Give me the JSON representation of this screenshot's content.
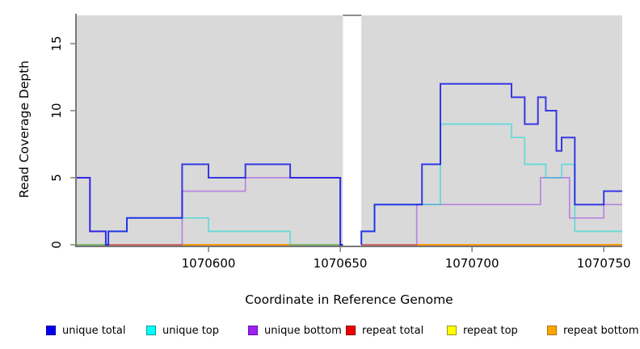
{
  "axes": {
    "x_label": "Coordinate in Reference Genome",
    "y_label": "Read Coverage Depth",
    "x_ticks": [
      1070600,
      1070650,
      1070700,
      1070750
    ],
    "y_ticks": [
      0,
      5,
      10,
      15
    ]
  },
  "legend": [
    {
      "label": "unique total",
      "fill": "#0000EE",
      "border": "#0000A0"
    },
    {
      "label": "unique top",
      "fill": "#00FFFF",
      "border": "#009999"
    },
    {
      "label": "unique bottom",
      "fill": "#A020F0",
      "border": "#6A0DAD"
    },
    {
      "label": "repeat total",
      "fill": "#EE0000",
      "border": "#8B0000"
    },
    {
      "label": "repeat top",
      "fill": "#FFFF00",
      "border": "#9A9A00"
    },
    {
      "label": "repeat bottom",
      "fill": "#FFA500",
      "border": "#B07000"
    }
  ],
  "chart_data": {
    "type": "line",
    "step": true,
    "title": "",
    "xlabel": "Coordinate in Reference Genome",
    "ylabel": "Read Coverage Depth",
    "x_range": [
      1070550,
      1070757
    ],
    "y_range": [
      0,
      17
    ],
    "grid": false,
    "legend_position": "bottom",
    "plot_bg": "#D9D9D9",
    "gap_x": [
      1070651,
      1070658
    ],
    "series": [
      {
        "name": "repeat total",
        "color": "#DC0000",
        "opacity": 0.85,
        "width": 1.6,
        "segments": [
          [
            [
              1070550,
              0
            ],
            [
              1070651,
              0
            ]
          ],
          [
            [
              1070658,
              0
            ],
            [
              1070757,
              0
            ]
          ]
        ]
      },
      {
        "name": "repeat top",
        "color": "#F5E600",
        "opacity": 0.85,
        "width": 1.6,
        "segments": [
          [
            [
              1070550,
              0
            ],
            [
              1070651,
              0
            ]
          ],
          [
            [
              1070658,
              0
            ],
            [
              1070757,
              0
            ]
          ]
        ]
      },
      {
        "name": "repeat bottom",
        "color": "#FF9400",
        "opacity": 0.95,
        "width": 1.8,
        "segments": [
          [
            [
              1070550,
              0
            ],
            [
              1070651,
              0
            ]
          ],
          [
            [
              1070658,
              0
            ],
            [
              1070757,
              0
            ]
          ]
        ]
      },
      {
        "name": "unique bottom",
        "color": "#9B30E8",
        "opacity": 0.5,
        "width": 1.7,
        "segments": [
          [
            [
              1070550,
              5
            ],
            [
              1070555,
              1
            ],
            [
              1070561,
              0
            ],
            [
              1070590,
              4
            ],
            [
              1070614,
              5
            ],
            [
              1070650,
              0
            ],
            [
              1070651,
              0
            ]
          ],
          [
            [
              1070658,
              0
            ],
            [
              1070679,
              3
            ],
            [
              1070726,
              5
            ],
            [
              1070737,
              2
            ],
            [
              1070750,
              3
            ],
            [
              1070757,
              3
            ]
          ]
        ]
      },
      {
        "name": "unique top",
        "color": "#00D8D8",
        "opacity": 0.55,
        "width": 1.7,
        "segments": [
          [
            [
              1070550,
              0
            ],
            [
              1070562,
              1
            ],
            [
              1070569,
              2
            ],
            [
              1070600,
              1
            ],
            [
              1070631,
              0
            ],
            [
              1070651,
              0
            ]
          ],
          [
            [
              1070658,
              0
            ],
            [
              1070658,
              1
            ],
            [
              1070663,
              3
            ],
            [
              1070688,
              9
            ],
            [
              1070715,
              8
            ],
            [
              1070720,
              6
            ],
            [
              1070728,
              5
            ],
            [
              1070734,
              6
            ],
            [
              1070739,
              1
            ],
            [
              1070757,
              1
            ]
          ]
        ]
      },
      {
        "name": "unique total",
        "color": "#0A0AE6",
        "opacity": 0.78,
        "width": 2,
        "segments": [
          [
            [
              1070550,
              5
            ],
            [
              1070555,
              1
            ],
            [
              1070561,
              0
            ],
            [
              1070562,
              1
            ],
            [
              1070569,
              2
            ],
            [
              1070590,
              6
            ],
            [
              1070600,
              5
            ],
            [
              1070614,
              6
            ],
            [
              1070631,
              5
            ],
            [
              1070650,
              0
            ],
            [
              1070651,
              0
            ]
          ],
          [
            [
              1070658,
              0
            ],
            [
              1070658,
              1
            ],
            [
              1070663,
              3
            ],
            [
              1070681,
              6
            ],
            [
              1070688,
              12
            ],
            [
              1070715,
              11
            ],
            [
              1070720,
              9
            ],
            [
              1070725,
              11
            ],
            [
              1070728,
              10
            ],
            [
              1070732,
              7
            ],
            [
              1070734,
              8
            ],
            [
              1070739,
              3
            ],
            [
              1070750,
              4
            ],
            [
              1070757,
              4
            ]
          ]
        ]
      }
    ]
  }
}
